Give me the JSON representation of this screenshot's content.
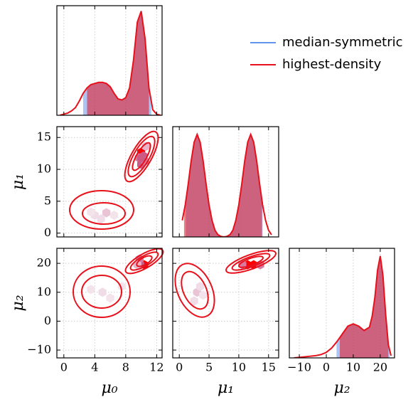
{
  "chart_data": [
    {
      "type": "line",
      "xlim": [
        -0.9,
        12.7
      ],
      "xticks": [
        0,
        4,
        8,
        12
      ],
      "ylim": [
        0,
        1
      ],
      "x": [
        -0.5,
        0,
        0.5,
        1,
        1.5,
        2,
        2.5,
        3,
        3.5,
        4,
        4.5,
        5,
        5.5,
        6,
        6.5,
        7,
        7.5,
        8,
        8.5,
        9,
        9.5,
        10,
        10.5,
        11,
        11.5,
        12,
        12.5
      ],
      "values": [
        0.0,
        0.01,
        0.02,
        0.04,
        0.07,
        0.13,
        0.2,
        0.25,
        0.28,
        0.29,
        0.3,
        0.3,
        0.29,
        0.26,
        0.2,
        0.15,
        0.14,
        0.16,
        0.25,
        0.5,
        0.85,
        0.95,
        0.7,
        0.25,
        0.05,
        0.01,
        0.0
      ],
      "series": [
        {
          "name": "median-symmetric",
          "color": "#6495ed",
          "interval": [
            2.5,
            11.3
          ]
        },
        {
          "name": "highest-density",
          "color": "#e8101a",
          "interval": [
            3.0,
            11.0
          ]
        }
      ]
    },
    {
      "type": "scatter",
      "xlim": [
        -0.9,
        12.7
      ],
      "xticks": [
        0,
        4,
        8,
        12
      ],
      "ylim": [
        -0.6,
        16.7
      ],
      "yticks": [
        0,
        5,
        10,
        15
      ],
      "ylabel": "μ₁",
      "x": [
        10,
        10.3,
        10.6,
        9.7,
        10,
        10.5,
        10,
        5.5,
        4,
        4.8,
        3.5,
        6.5
      ],
      "y": [
        12.7,
        12.1,
        13.6,
        11.8,
        10.8,
        11.3,
        11.8,
        3.2,
        2.8,
        2.2,
        3.3,
        2.8
      ],
      "colors": [
        "#ff0000",
        "#cc5a84",
        "#e8b4c8",
        "#d87aa0",
        "#cc5a84",
        "#d87aa0",
        "#cc5a84",
        "#e8c4d4",
        "#f0dce6",
        "#f0dce6",
        "#f3e4ec",
        "#f3e4ec"
      ]
    },
    {
      "type": "line",
      "xlim": [
        -1.1,
        16.7
      ],
      "xticks": [
        0,
        5,
        10,
        15
      ],
      "ylim": [
        0,
        1
      ],
      "x": [
        0.5,
        1,
        1.5,
        2,
        2.5,
        3,
        3.5,
        4,
        4.5,
        5,
        5.5,
        6,
        6.5,
        7,
        7.5,
        8,
        8.5,
        9,
        9.5,
        10,
        10.5,
        11,
        11.5,
        12,
        12.5,
        13,
        13.5,
        14,
        14.5,
        15,
        15.5
      ],
      "values": [
        0.15,
        0.29,
        0.48,
        0.69,
        0.86,
        0.93,
        0.86,
        0.69,
        0.48,
        0.29,
        0.15,
        0.06,
        0.02,
        0.005,
        0.0,
        0.005,
        0.02,
        0.06,
        0.15,
        0.29,
        0.48,
        0.69,
        0.86,
        0.93,
        0.86,
        0.69,
        0.48,
        0.29,
        0.15,
        0.06,
        0.02
      ],
      "series": [
        {
          "name": "median-symmetric",
          "color": "#6495ed",
          "interval": [
            1.1,
            14.0
          ]
        },
        {
          "name": "highest-density",
          "color": "#e8101a",
          "interval": [
            0.8,
            13.9
          ]
        }
      ]
    },
    {
      "type": "scatter",
      "xlim": [
        -0.9,
        12.7
      ],
      "xticks": [
        0,
        4,
        8,
        12
      ],
      "ylim": [
        -12.7,
        25.2
      ],
      "yticks": [
        {
          "value": -10,
          "label": "−10"
        },
        0,
        10,
        20
      ],
      "xlabel": "μ₀",
      "ylabel": "μ₂",
      "x": [
        10.4,
        9.9,
        9.8,
        9.5,
        5,
        3.5,
        6,
        7.5
      ],
      "y": [
        19.5,
        19.5,
        21.5,
        19.5,
        10,
        11,
        8,
        12
      ],
      "colors": [
        "#ff0000",
        "#cc5a84",
        "#d87aa0",
        "#e8b4c8",
        "#f0dce6",
        "#f3e4ec",
        "#f3e4ec",
        "#f3e4ec"
      ]
    },
    {
      "type": "scatter",
      "xlim": [
        -1.1,
        16.7
      ],
      "xticks": [
        0,
        5,
        10,
        15
      ],
      "ylim": [
        -12.7,
        25.2
      ],
      "yticks": [
        {
          "value": -10,
          "label": "−10"
        },
        0,
        10,
        20
      ],
      "xlabel": "μ₁",
      "x": [
        11.5,
        12.5,
        10.6,
        13.6,
        3,
        2.5,
        3.5,
        4
      ],
      "y": [
        19.5,
        19.5,
        19.5,
        19.5,
        10,
        7,
        12,
        9
      ],
      "colors": [
        "#ff0000",
        "#ff0000",
        "#d87aa0",
        "#d87aa0",
        "#e8c4d4",
        "#f0dce6",
        "#f0dce6",
        "#f3e4ec"
      ]
    },
    {
      "type": "line",
      "xlim": [
        -13.7,
        25.3
      ],
      "xticks": [
        {
          "value": -10,
          "label": "−10"
        },
        0,
        10,
        20
      ],
      "ylim": [
        0,
        1
      ],
      "xlabel": "μ₂",
      "x": [
        -12,
        -10,
        -8,
        -6,
        -4,
        -2,
        0,
        2,
        4,
        6,
        8,
        10,
        12,
        14,
        16,
        17,
        18,
        19,
        20,
        21,
        22,
        23,
        24
      ],
      "values": [
        0.0,
        0.005,
        0.01,
        0.015,
        0.02,
        0.03,
        0.05,
        0.09,
        0.15,
        0.22,
        0.29,
        0.31,
        0.29,
        0.25,
        0.28,
        0.38,
        0.55,
        0.8,
        0.93,
        0.75,
        0.4,
        0.12,
        0.02
      ],
      "series": [
        {
          "name": "median-symmetric",
          "color": "#6495ed",
          "interval": [
            3.8,
            23.5
          ]
        },
        {
          "name": "highest-density",
          "color": "#e8101a",
          "interval": [
            5.0,
            23.0
          ]
        }
      ]
    }
  ]
}
